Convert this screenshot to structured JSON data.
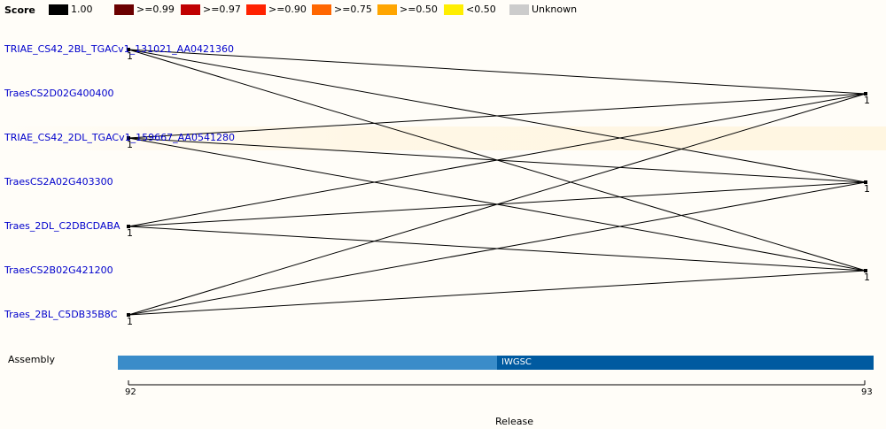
{
  "legend": {
    "title": "Score",
    "items": [
      {
        "label": "1.00",
        "color": "#000000"
      },
      {
        "label": ">=0.99",
        "color": "#6b0000"
      },
      {
        "label": ">=0.97",
        "color": "#c00000"
      },
      {
        "label": ">=0.90",
        "color": "#ff2200"
      },
      {
        "label": ">=0.75",
        "color": "#ff6600"
      },
      {
        "label": ">=0.50",
        "color": "#ffa500"
      },
      {
        "label": "<0.50",
        "color": "#ffee00"
      },
      {
        "label": "Unknown",
        "color": "#cccccc"
      }
    ]
  },
  "genes": [
    {
      "label": "TRIAE_CS42_2BL_TGACv1_131021_AA0421360"
    },
    {
      "label": "TraesCS2D02G400400"
    },
    {
      "label": "TRIAE_CS42_2DL_TGACv1_159667_AA0541280"
    },
    {
      "label": "TraesCS2A02G403300"
    },
    {
      "label": "Traes_2DL_C2DBCDABA"
    },
    {
      "label": "TraesCS2B02G421200"
    },
    {
      "label": "Traes_2BL_C5DB35B8C"
    }
  ],
  "node_labels": {
    "left": "1",
    "right": "1"
  },
  "links": [
    {
      "from": "TRIAE_CS42_2BL_TGACv1_131021_AA0421360",
      "to": "TraesCS2D02G400400"
    },
    {
      "from": "TRIAE_CS42_2BL_TGACv1_131021_AA0421360",
      "to": "TraesCS2A02G403300"
    },
    {
      "from": "TRIAE_CS42_2BL_TGACv1_131021_AA0421360",
      "to": "TraesCS2B02G421200"
    },
    {
      "from": "TRIAE_CS42_2DL_TGACv1_159667_AA0541280",
      "to": "TraesCS2D02G400400"
    },
    {
      "from": "TRIAE_CS42_2DL_TGACv1_159667_AA0541280",
      "to": "TraesCS2A02G403300"
    },
    {
      "from": "TRIAE_CS42_2DL_TGACv1_159667_AA0541280",
      "to": "TraesCS2B02G421200"
    },
    {
      "from": "Traes_2DL_C2DBCDABA",
      "to": "TraesCS2D02G400400"
    },
    {
      "from": "Traes_2DL_C2DBCDABA",
      "to": "TraesCS2A02G403300"
    },
    {
      "from": "Traes_2DL_C2DBCDABA",
      "to": "TraesCS2B02G421200"
    },
    {
      "from": "Traes_2BL_C5DB35B8C",
      "to": "TraesCS2D02G400400"
    },
    {
      "from": "Traes_2BL_C5DB35B8C",
      "to": "TraesCS2A02G403300"
    },
    {
      "from": "Traes_2BL_C5DB35B8C",
      "to": "TraesCS2B02G421200"
    }
  ],
  "highlighted_gene": "TRIAE_CS42_2DL_TGACv1_159667_AA0541280",
  "assembly": {
    "label": "Assembly",
    "segments": [
      {
        "label": "",
        "color": "#3a8cc9"
      },
      {
        "label": "IWGSC",
        "color": "#005aa0"
      }
    ]
  },
  "release": {
    "title": "Release",
    "ticks": [
      "92",
      "93"
    ]
  }
}
